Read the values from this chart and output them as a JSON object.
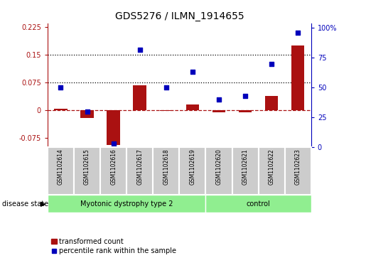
{
  "title": "GDS5276 / ILMN_1914655",
  "samples": [
    "GSM1102614",
    "GSM1102615",
    "GSM1102616",
    "GSM1102617",
    "GSM1102618",
    "GSM1102619",
    "GSM1102620",
    "GSM1102621",
    "GSM1102622",
    "GSM1102623"
  ],
  "transformed_count": [
    0.003,
    -0.022,
    -0.095,
    0.068,
    -0.003,
    0.015,
    -0.006,
    -0.006,
    0.038,
    0.175
  ],
  "percentile_rank_pct": [
    50,
    30,
    3,
    82,
    50,
    63,
    40,
    43,
    70,
    96
  ],
  "n_disease": 6,
  "n_control": 4,
  "group_labels": [
    "Myotonic dystrophy type 2",
    "control"
  ],
  "group_color": "#90EE90",
  "left_ylim": [
    -0.1,
    0.235
  ],
  "left_yticks": [
    -0.075,
    0.0,
    0.075,
    0.15,
    0.225
  ],
  "left_yticklabels": [
    "-0.075",
    "0",
    "0.075",
    "0.15",
    "0.225"
  ],
  "right_ylim": [
    0,
    104
  ],
  "right_yticks": [
    0,
    25,
    50,
    75,
    100
  ],
  "right_yticklabels": [
    "0",
    "25",
    "50",
    "75",
    "100%"
  ],
  "bar_color": "#AA1111",
  "dot_color": "#0000BB",
  "bar_width": 0.5,
  "hline_dotted": [
    0.075,
    0.15
  ],
  "legend_bar_label": "transformed count",
  "legend_dot_label": "percentile rank within the sample",
  "disease_state_label": "disease state",
  "sample_box_color": "#CCCCCC",
  "fig_width": 5.15,
  "fig_height": 3.63,
  "dpi": 100
}
